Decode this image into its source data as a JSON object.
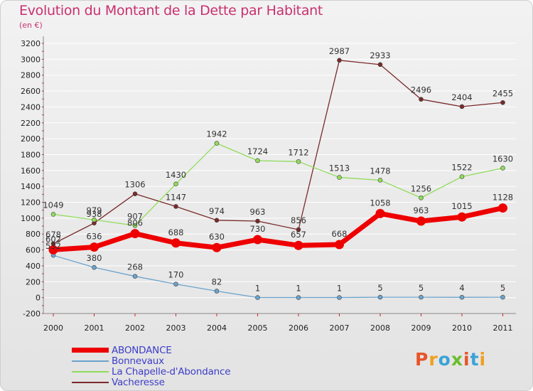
{
  "chart_data": {
    "type": "line",
    "title": "Evolution du Montant de la Dette par Habitant",
    "subtitle": "(en €)",
    "xlabel": "",
    "ylabel": "",
    "x": [
      "2000",
      "2001",
      "2002",
      "2003",
      "2004",
      "2005",
      "2006",
      "2007",
      "2008",
      "2009",
      "2010",
      "2011"
    ],
    "ylim": [
      -200,
      3200
    ],
    "yticks": [
      -200,
      0,
      200,
      400,
      600,
      800,
      1000,
      1200,
      1400,
      1600,
      1800,
      2000,
      2200,
      2400,
      2600,
      2800,
      3000,
      3200
    ],
    "grid": "horizontal",
    "legend_position": "bottom-left",
    "series": [
      {
        "name": "Vacheresse",
        "color": "#7a2a2a",
        "values": [
          678,
          938,
          1306,
          1147,
          974,
          963,
          856,
          2987,
          2933,
          2496,
          2404,
          2455
        ]
      },
      {
        "name": "La Chapelle-d'Abondance",
        "color": "#90dc5a",
        "values": [
          1049,
          979,
          907,
          1430,
          1942,
          1724,
          1712,
          1513,
          1478,
          1256,
          1522,
          1630
        ]
      },
      {
        "name": "Bonnevaux",
        "color": "#6ba3cc",
        "values": [
          532,
          380,
          268,
          170,
          82,
          1,
          1,
          1,
          5,
          5,
          4,
          5
        ]
      },
      {
        "name": "ABONDANCE",
        "color": "#ee0000",
        "values": [
          602,
          636,
          806,
          688,
          630,
          730,
          657,
          668,
          1058,
          963,
          1015,
          1128
        ]
      }
    ],
    "legend_order": [
      "ABONDANCE",
      "Bonnevaux",
      "La Chapelle-d'Abondance",
      "Vacheresse"
    ]
  }
}
